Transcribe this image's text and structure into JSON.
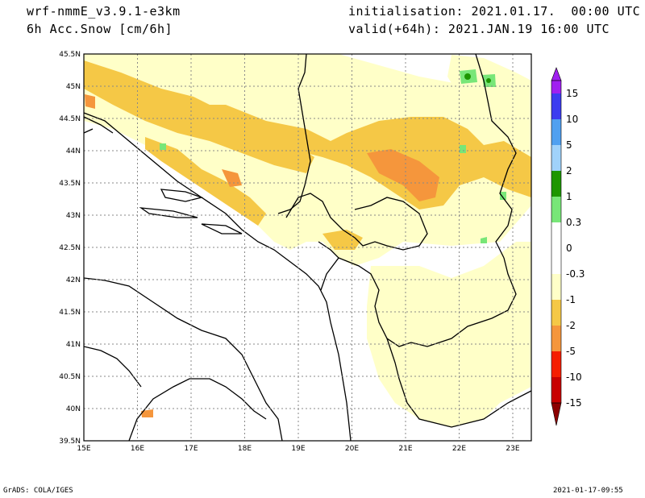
{
  "header": {
    "model": "wrf-nmmE_v3.9.1-e3km",
    "field": "6h Acc.Snow [cm/6h]",
    "init": "initialisation: 2021.01.17.  00:00 UTC",
    "valid": "valid(+64h): 2021.JAN.19 16:00 UTC"
  },
  "footer": {
    "left": "GrADS: COLA/IGES",
    "right": "2021-01-17-09:55"
  },
  "map": {
    "lon_ticks": [
      "15E",
      "16E",
      "17E",
      "18E",
      "19E",
      "20E",
      "21E",
      "22E",
      "23E"
    ],
    "lat_ticks": [
      "45.5N",
      "45N",
      "44.5N",
      "44N",
      "43.5N",
      "43N",
      "42.5N",
      "42N",
      "41.5N",
      "41N",
      "40.5N",
      "40N",
      "39.5N"
    ]
  },
  "colorbar": {
    "labels": [
      "15",
      "10",
      "5",
      "2",
      "1",
      "0.3",
      "0",
      "-0.3",
      "-1",
      "-2",
      "-5",
      "-10",
      "-15"
    ],
    "colors": [
      "#a020f0",
      "#3c3cf0",
      "#50a0f0",
      "#a0d2fa",
      "#1e9600",
      "#78e678",
      "#ffffff",
      "#ffffc8",
      "#f5c846",
      "#f5963c",
      "#f51e00",
      "#c80000",
      "#8c0000"
    ]
  }
}
